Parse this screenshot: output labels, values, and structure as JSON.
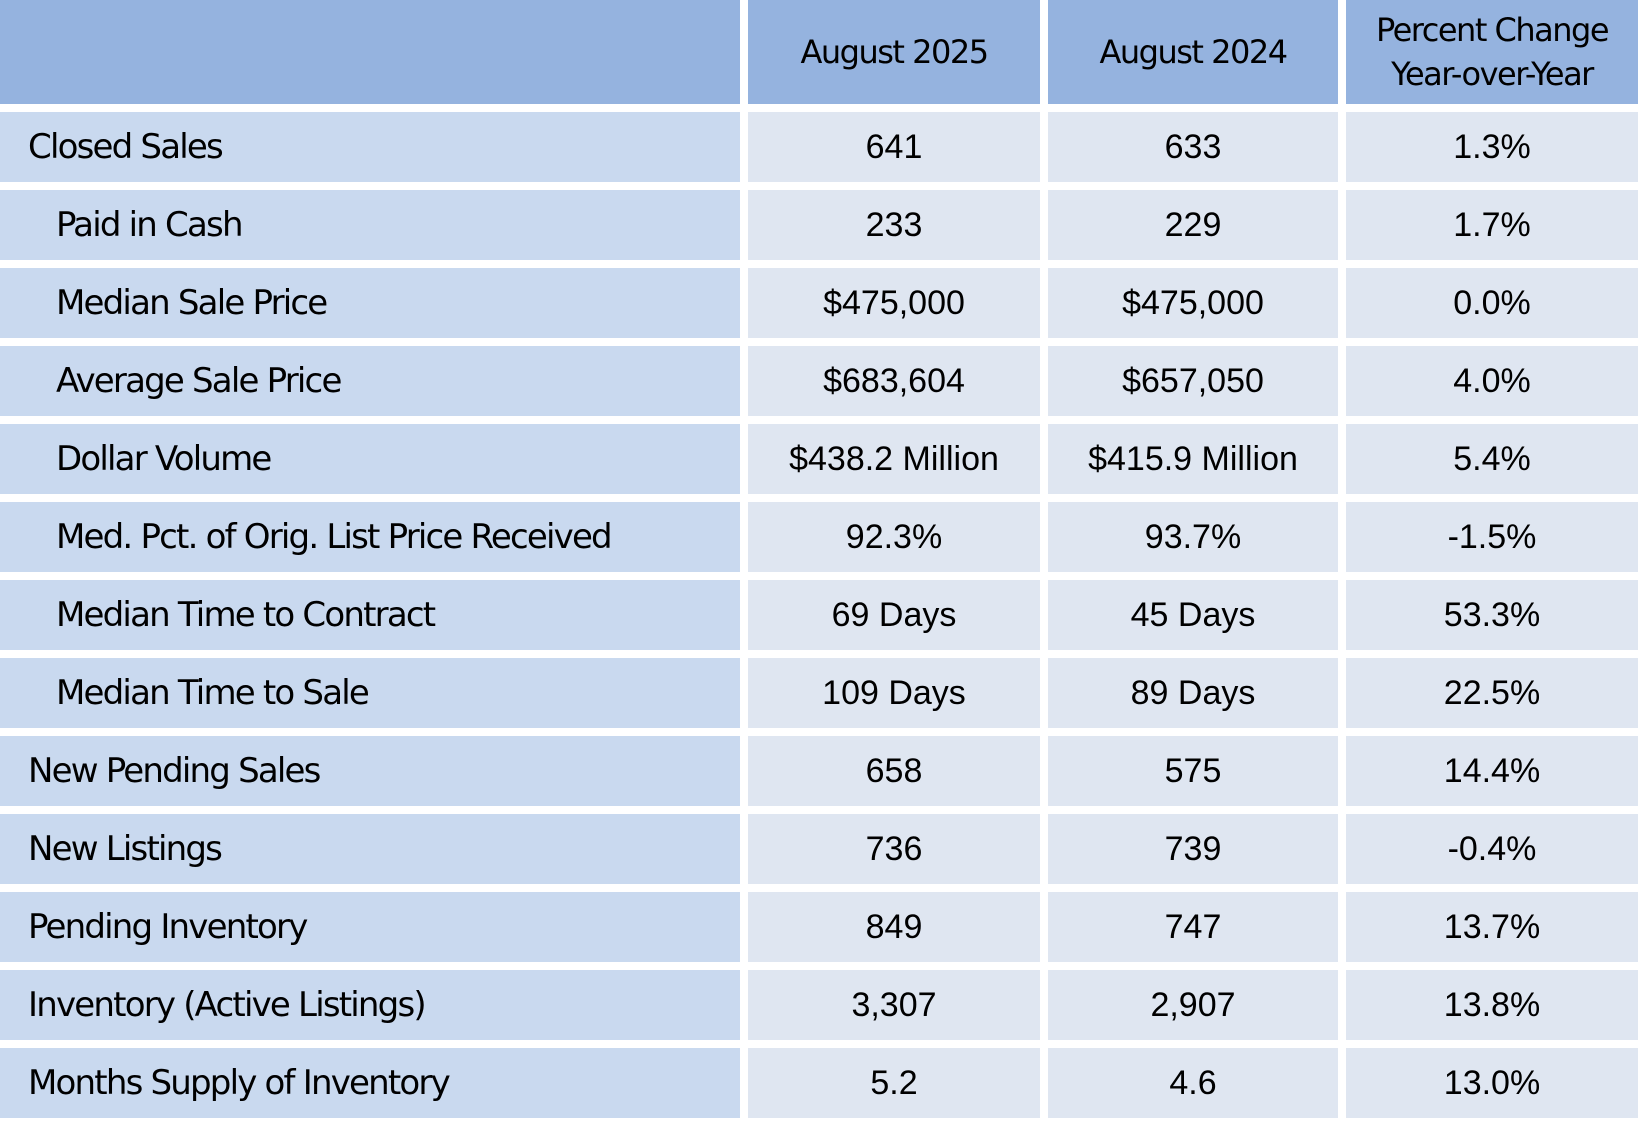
{
  "header": {
    "columns": [
      "August 2025",
      "August 2024",
      [
        "Percent Change",
        "Year-over-Year"
      ]
    ]
  },
  "rows": [
    {
      "label": "Closed Sales",
      "values": [
        "641",
        "633",
        "1.3%"
      ],
      "subrows": [
        {
          "label": "Paid in Cash",
          "values": [
            "233",
            "229",
            "1.7%"
          ]
        },
        {
          "label": "Median Sale Price",
          "values": [
            "$475,000",
            "$475,000",
            "0.0%"
          ]
        },
        {
          "label": "Average Sale Price",
          "values": [
            "$683,604",
            "$657,050",
            "4.0%"
          ]
        },
        {
          "label": "Dollar Volume",
          "values": [
            "$438.2 Million",
            "$415.9 Million",
            "5.4%"
          ]
        },
        {
          "label": "Med. Pct. of Orig. List Price Received",
          "values": [
            "92.3%",
            "93.7%",
            "-1.5%"
          ]
        },
        {
          "label": "Median Time to Contract",
          "values": [
            "69 Days",
            "45 Days",
            "53.3%"
          ]
        },
        {
          "label": "Median Time to Sale",
          "values": [
            "109 Days",
            "89 Days",
            "22.5%"
          ]
        }
      ]
    },
    {
      "label": "New Pending Sales",
      "values": [
        "658",
        "575",
        "14.4%"
      ]
    },
    {
      "label": "New Listings",
      "values": [
        "736",
        "739",
        "-0.4%"
      ]
    },
    {
      "label": "Pending Inventory",
      "values": [
        "849",
        "747",
        "13.7%"
      ]
    },
    {
      "label": "Inventory (Active Listings)",
      "values": [
        "3,307",
        "2,907",
        "13.8%"
      ]
    },
    {
      "label": "Months Supply of Inventory",
      "values": [
        "5.2",
        "4.6",
        "13.0%"
      ]
    }
  ]
}
